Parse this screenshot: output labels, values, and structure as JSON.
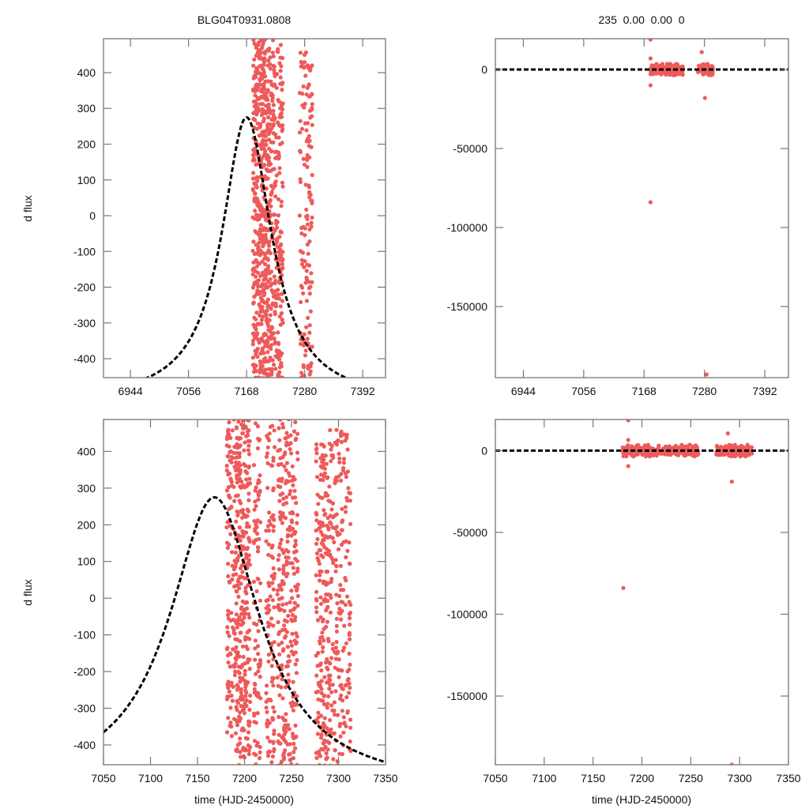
{
  "title_left": "BLG04T0931.0808",
  "title_right": "235  0.00  0.00  0",
  "ylabel": "d flux",
  "xlabel": "time (HJD-2450000)",
  "colors": {
    "points": "#ee5a5a",
    "model": "#000000",
    "frame": "#777777"
  },
  "chart_data": [
    {
      "id": "top-left",
      "type": "scatter",
      "xlim": [
        6892,
        7436
      ],
      "ylim": [
        -453,
        495
      ],
      "xticks": [
        6944,
        7056,
        7168,
        7280,
        7392
      ],
      "yticks": [
        -400,
        -300,
        -200,
        -100,
        0,
        100,
        200,
        300,
        400
      ],
      "ylabel": "d flux",
      "xlabel": "",
      "model": {
        "peak_time": 7168,
        "peak_flux": 275,
        "baseline": -520,
        "width": 58
      },
      "point_clusters": [
        {
          "x_range": [
            7180,
            7212
          ],
          "y_range": [
            -460,
            500
          ],
          "count": 520
        },
        {
          "x_range": [
            7212,
            7238
          ],
          "y_range": [
            -460,
            495
          ],
          "count": 260
        },
        {
          "x_range": [
            7270,
            7282
          ],
          "y_range": [
            -460,
            460
          ],
          "count": 60
        },
        {
          "x_range": [
            7282,
            7295
          ],
          "y_range": [
            -460,
            470
          ],
          "count": 90
        }
      ]
    },
    {
      "id": "top-right",
      "type": "scatter",
      "xlim": [
        6892,
        7436
      ],
      "ylim": [
        -195000,
        19500
      ],
      "xticks": [
        6944,
        7056,
        7168,
        7280,
        7392
      ],
      "yticks": [
        -150000,
        -100000,
        -50000,
        0
      ],
      "xlabel": "",
      "model": {
        "baseline": 0
      },
      "point_clusters": [
        {
          "x_range": [
            7180,
            7240
          ],
          "y_range": [
            -3500,
            3500
          ],
          "count": 260
        },
        {
          "x_range": [
            7268,
            7296
          ],
          "y_range": [
            -3500,
            3500
          ],
          "count": 120
        }
      ],
      "outliers": [
        {
          "x": 7180,
          "y": 19000
        },
        {
          "x": 7180,
          "y": -84000
        },
        {
          "x": 7180,
          "y": -10000
        },
        {
          "x": 7180,
          "y": 7000
        },
        {
          "x": 7275,
          "y": 11000
        },
        {
          "x": 7281,
          "y": -18000
        },
        {
          "x": 7284,
          "y": -193000
        }
      ]
    },
    {
      "id": "bottom-left",
      "type": "scatter",
      "xlim": [
        7050,
        7350
      ],
      "ylim": [
        -454,
        487
      ],
      "xticks": [
        7050,
        7100,
        7150,
        7200,
        7250,
        7300,
        7350
      ],
      "yticks": [
        -400,
        -300,
        -200,
        -100,
        0,
        100,
        200,
        300,
        400
      ],
      "ylabel": "d flux",
      "xlabel": "time (HJD-2450000)",
      "model": {
        "peak_time": 7168,
        "peak_flux": 275,
        "baseline": -520,
        "width": 58
      },
      "point_clusters": [
        {
          "x_range": [
            7181,
            7190
          ],
          "y_range": [
            -380,
            490
          ],
          "count": 110
        },
        {
          "x_range": [
            7190,
            7206
          ],
          "y_range": [
            -460,
            490
          ],
          "count": 320
        },
        {
          "x_range": [
            7210,
            7217
          ],
          "y_range": [
            -460,
            480
          ],
          "count": 90
        },
        {
          "x_range": [
            7223,
            7232
          ],
          "y_range": [
            -460,
            470
          ],
          "count": 110
        },
        {
          "x_range": [
            7235,
            7257
          ],
          "y_range": [
            -460,
            490
          ],
          "count": 280
        },
        {
          "x_range": [
            7276,
            7290
          ],
          "y_range": [
            -460,
            420
          ],
          "count": 200
        },
        {
          "x_range": [
            7290,
            7313
          ],
          "y_range": [
            -460,
            460
          ],
          "count": 220
        }
      ]
    },
    {
      "id": "bottom-right",
      "type": "scatter",
      "xlim": [
        7050,
        7350
      ],
      "ylim": [
        -192000,
        19000
      ],
      "xticks": [
        7050,
        7100,
        7150,
        7200,
        7250,
        7300,
        7350
      ],
      "yticks": [
        -150000,
        -100000,
        -50000,
        0
      ],
      "xlabel": "time (HJD-2450000)",
      "model": {
        "baseline": 0
      },
      "point_clusters": [
        {
          "x_range": [
            7180,
            7258
          ],
          "y_range": [
            -3500,
            3500
          ],
          "count": 300
        },
        {
          "x_range": [
            7276,
            7313
          ],
          "y_range": [
            -3500,
            3500
          ],
          "count": 170
        }
      ],
      "outliers": [
        {
          "x": 7186,
          "y": 18500
        },
        {
          "x": 7181,
          "y": -84000
        },
        {
          "x": 7186,
          "y": -9500
        },
        {
          "x": 7186,
          "y": 6500
        },
        {
          "x": 7288,
          "y": 10500
        },
        {
          "x": 7292,
          "y": -19000
        },
        {
          "x": 7292,
          "y": -192000
        }
      ]
    }
  ]
}
